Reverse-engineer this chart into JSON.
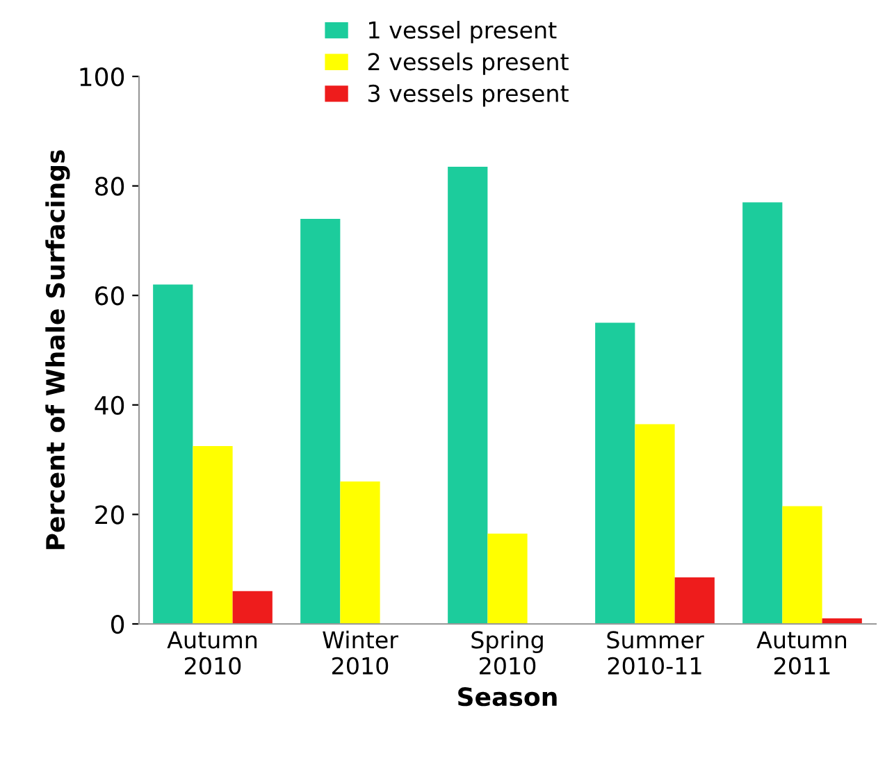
{
  "chart_data": {
    "type": "bar",
    "xlabel": "Season",
    "ylabel": "Percent of Whale Surfacings",
    "categories": [
      "Autumn\n2010",
      "Winter\n2010",
      "Spring\n2010",
      "Summer\n2010-11",
      "Autumn\n2011"
    ],
    "series": [
      {
        "name": "1 vessel present",
        "color": "#1ccc9c",
        "values": [
          62,
          74,
          83.5,
          55,
          77
        ]
      },
      {
        "name": "2 vessels present",
        "color": "#ffff00",
        "values": [
          32.5,
          26,
          16.5,
          36.5,
          21.5
        ]
      },
      {
        "name": "3 vessels present",
        "color": "#ee1c1c",
        "values": [
          6,
          0,
          0,
          8.5,
          1
        ]
      }
    ],
    "ylim": [
      0,
      100
    ],
    "yticks": [
      0,
      20,
      40,
      60,
      80,
      100
    ],
    "grid": false,
    "legend": "top"
  }
}
